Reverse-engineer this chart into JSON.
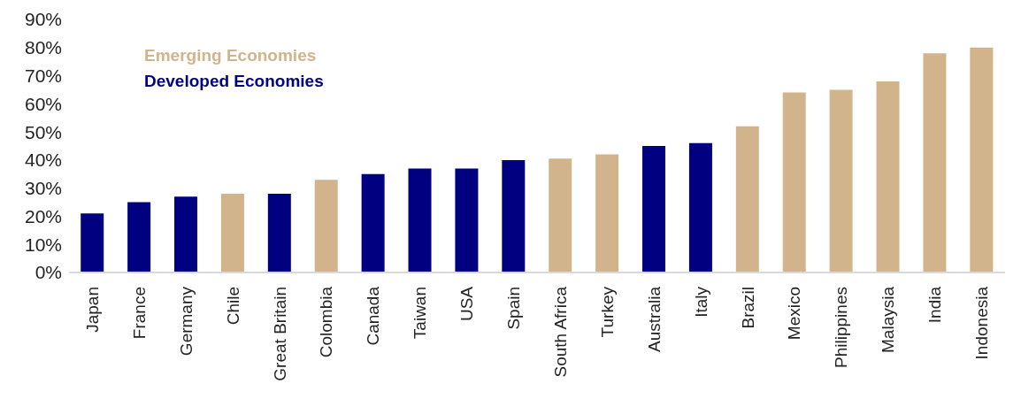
{
  "chart_data": {
    "type": "bar",
    "categories": [
      "Japan",
      "France",
      "Germany",
      "Chile",
      "Great Britain",
      "Colombia",
      "Canada",
      "Taiwan",
      "USA",
      "Spain",
      "South Africa",
      "Turkey",
      "Australia",
      "Italy",
      "Brazil",
      "Mexico",
      "Philippines",
      "Malaysia",
      "India",
      "Indonesia"
    ],
    "series": [
      {
        "name": "Emerging Economies",
        "color": "#d2b48c",
        "values": [
          null,
          null,
          null,
          28,
          null,
          33,
          null,
          null,
          null,
          null,
          40.5,
          42,
          null,
          null,
          52,
          64,
          65,
          68,
          78,
          80
        ]
      },
      {
        "name": "Developed Economies",
        "color": "#000080",
        "values": [
          21,
          25,
          27,
          null,
          28,
          null,
          35,
          37,
          37,
          40,
          null,
          null,
          45,
          46,
          null,
          null,
          null,
          null,
          null,
          null
        ]
      }
    ],
    "stacked": true,
    "ylim": [
      0,
      90
    ],
    "yticks": [
      {
        "value": 0,
        "label": "0%"
      },
      {
        "value": 10,
        "label": "10%"
      },
      {
        "value": 20,
        "label": "20%"
      },
      {
        "value": 30,
        "label": "30%"
      },
      {
        "value": 40,
        "label": "40%"
      },
      {
        "value": 50,
        "label": "50%"
      },
      {
        "value": 60,
        "label": "60%"
      },
      {
        "value": 70,
        "label": "70%"
      },
      {
        "value": 80,
        "label": "80%"
      },
      {
        "value": 90,
        "label": "90%"
      }
    ],
    "grid": false,
    "legend": "top left"
  }
}
